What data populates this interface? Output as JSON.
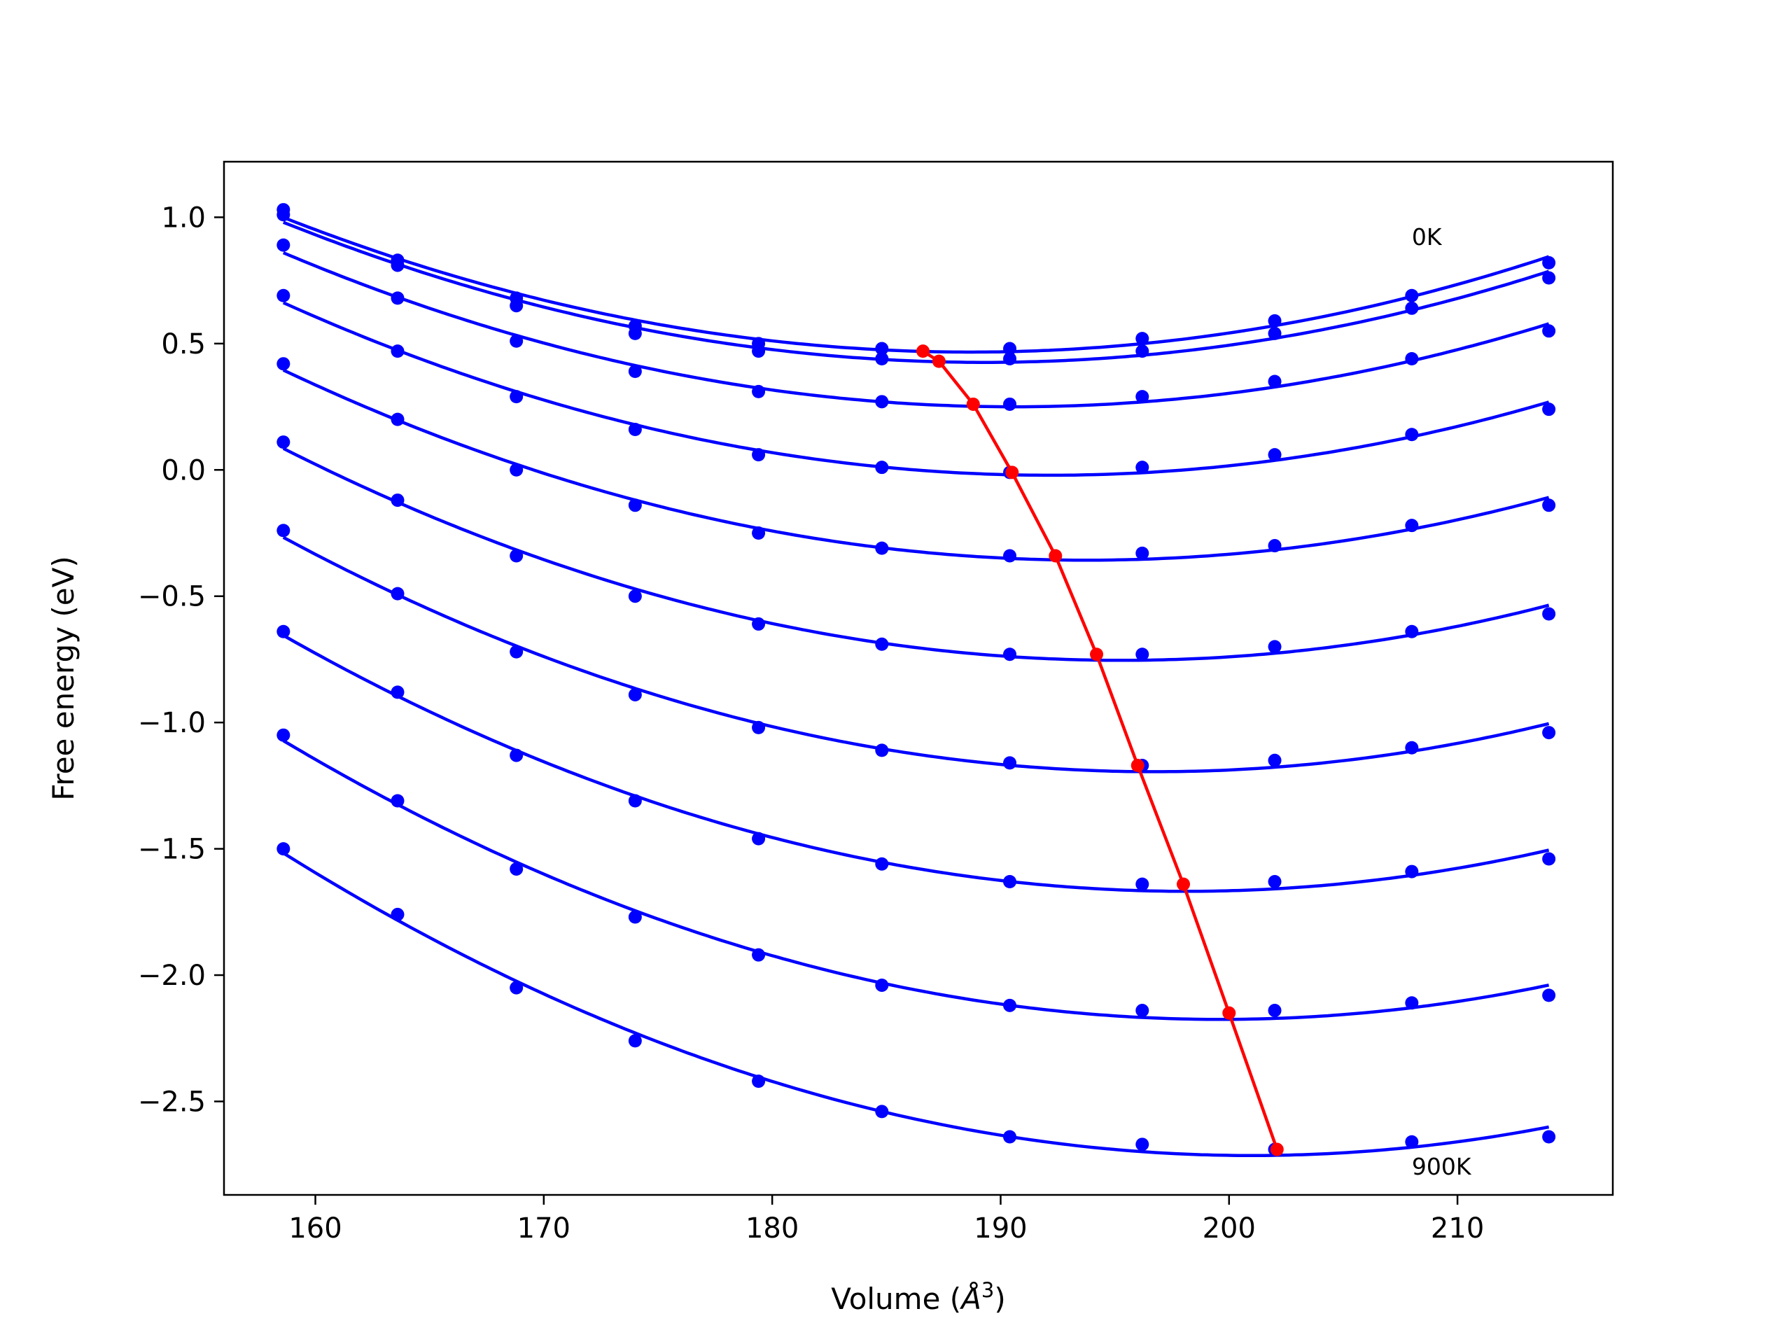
{
  "chart_data": {
    "type": "line",
    "xlabel": "Volume",
    "xlabel_unit": "Å",
    "xlabel_exp": "3",
    "ylabel": "Free energy (eV)",
    "xlim": [
      156,
      216.8
    ],
    "ylim": [
      -2.87,
      1.22
    ],
    "xticks": [
      160,
      170,
      180,
      190,
      200,
      210
    ],
    "xtick_labels": [
      "160",
      "170",
      "180",
      "190",
      "200",
      "210"
    ],
    "yticks": [
      1.0,
      0.5,
      0.0,
      -0.5,
      -1.0,
      -1.5,
      -2.0,
      -2.5
    ],
    "ytick_labels": [
      "1.0",
      "0.5",
      "0.0",
      "−0.5",
      "−1.0",
      "−1.5",
      "−2.0",
      "−2.5"
    ],
    "grid": false,
    "curve_color": "#0000ff",
    "min_line_color": "#ff0000",
    "volumes": [
      158.6,
      163.6,
      168.8,
      174.0,
      179.4,
      184.8,
      190.4,
      196.2,
      202.0,
      208.0,
      214.0
    ],
    "series": [
      {
        "values": [
          1.03,
          0.83,
          0.68,
          0.57,
          0.5,
          0.48,
          0.48,
          0.52,
          0.59,
          0.69,
          0.82
        ]
      },
      {
        "values": [
          1.01,
          0.81,
          0.65,
          0.54,
          0.47,
          0.44,
          0.44,
          0.47,
          0.54,
          0.64,
          0.76
        ]
      },
      {
        "values": [
          0.89,
          0.68,
          0.51,
          0.39,
          0.31,
          0.27,
          0.26,
          0.29,
          0.35,
          0.44,
          0.55
        ]
      },
      {
        "values": [
          0.69,
          0.47,
          0.29,
          0.16,
          0.06,
          0.01,
          -0.01,
          0.01,
          0.06,
          0.14,
          0.24
        ]
      },
      {
        "values": [
          0.42,
          0.2,
          0.0,
          -0.14,
          -0.25,
          -0.31,
          -0.34,
          -0.33,
          -0.3,
          -0.22,
          -0.14
        ]
      },
      {
        "values": [
          0.11,
          -0.12,
          -0.34,
          -0.5,
          -0.61,
          -0.69,
          -0.73,
          -0.73,
          -0.7,
          -0.64,
          -0.57
        ]
      },
      {
        "values": [
          -0.24,
          -0.49,
          -0.72,
          -0.89,
          -1.02,
          -1.11,
          -1.16,
          -1.17,
          -1.15,
          -1.1,
          -1.04
        ]
      },
      {
        "values": [
          -0.64,
          -0.88,
          -1.13,
          -1.31,
          -1.46,
          -1.56,
          -1.63,
          -1.64,
          -1.63,
          -1.59,
          -1.54
        ]
      },
      {
        "values": [
          -1.05,
          -1.31,
          -1.58,
          -1.77,
          -1.92,
          -2.04,
          -2.12,
          -2.14,
          -2.14,
          -2.11,
          -2.08
        ]
      },
      {
        "values": [
          -1.5,
          -1.76,
          -2.05,
          -2.26,
          -2.42,
          -2.54,
          -2.64,
          -2.67,
          -2.69,
          -2.66,
          -2.64
        ]
      }
    ],
    "minima": {
      "x": [
        186.6,
        187.3,
        188.8,
        190.5,
        192.4,
        194.2,
        196.0,
        198.0,
        200.0,
        202.1
      ],
      "y": [
        0.47,
        0.43,
        0.26,
        -0.01,
        -0.34,
        -0.73,
        -1.17,
        -1.64,
        -2.15,
        -2.69
      ]
    },
    "annotations": [
      {
        "text": "0K",
        "x": 208.0,
        "y": 0.89
      },
      {
        "text": "900K",
        "x": 208.0,
        "y": -2.79
      }
    ]
  }
}
